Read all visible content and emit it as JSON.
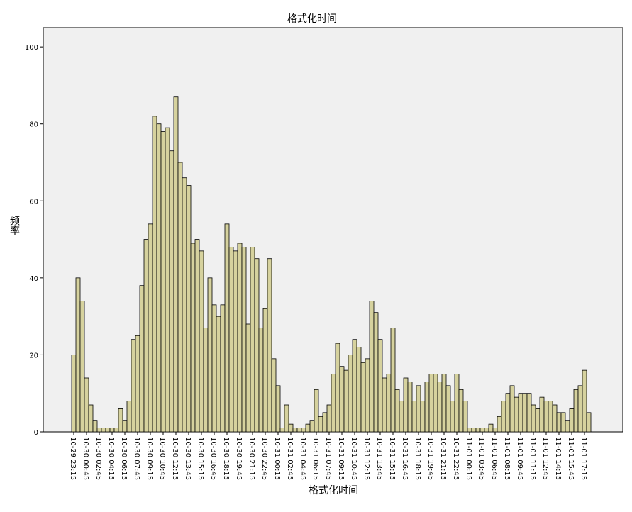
{
  "chart_data": {
    "type": "bar",
    "title": "格式化时间",
    "x_label": "格式化时间",
    "y_label": "频率",
    "categories": [
      "10-29 23:15",
      null,
      null,
      "10-30 00:45",
      null,
      null,
      "10-30 02:45",
      null,
      null,
      "10-30 04:15",
      null,
      null,
      "10-30 06:15",
      null,
      null,
      "10-30 07:45",
      null,
      null,
      "10-30 09:15",
      null,
      null,
      "10-30 10:45",
      null,
      null,
      "10-30 12:15",
      null,
      null,
      "10-30 13:45",
      null,
      null,
      "10-30 15:15",
      null,
      null,
      "10-30 16:45",
      null,
      null,
      "10-30 18:15",
      null,
      null,
      "10-30 19:45",
      null,
      null,
      "10-30 21:15",
      null,
      null,
      "10-30 22:45",
      null,
      null,
      "10-31 00:15",
      null,
      null,
      "10-31 02:45",
      null,
      null,
      "10-31 04:45",
      null,
      null,
      "10-31 06:15",
      null,
      null,
      "10-31 07:45",
      null,
      null,
      "10-31 09:15",
      null,
      null,
      "10-31 10:45",
      null,
      null,
      "10-31 12:15",
      null,
      null,
      "10-31 13:45",
      null,
      null,
      "10-31 15:15",
      null,
      null,
      "10-31 16:45",
      null,
      null,
      "10-31 18:15",
      null,
      null,
      "10-31 19:45",
      null,
      null,
      "10-31 21:15",
      null,
      null,
      "10-31 22:45",
      null,
      null,
      "11-01 00:15",
      null,
      null,
      "11-01 03:45",
      null,
      null,
      "11-01 06:45",
      null,
      null,
      "11-01 08:15",
      null,
      null,
      "11-01 09:45",
      null,
      null,
      "11-01 11:15",
      null,
      null,
      "11-01 12:45",
      null,
      null,
      "11-01 14:15",
      null,
      null,
      "11-01 15:45",
      null,
      null,
      "11-01 17:15",
      null
    ],
    "values": [
      20,
      40,
      34,
      14,
      7,
      3,
      1,
      1,
      1,
      1,
      1,
      6,
      3,
      8,
      24,
      25,
      38,
      50,
      54,
      82,
      80,
      78,
      79,
      73,
      87,
      70,
      66,
      64,
      49,
      50,
      47,
      27,
      40,
      33,
      30,
      33,
      54,
      48,
      47,
      49,
      48,
      28,
      48,
      45,
      27,
      32,
      45,
      19,
      12,
      1,
      7,
      2,
      1,
      1,
      1,
      2,
      3,
      11,
      4,
      5,
      7,
      15,
      23,
      17,
      16,
      20,
      24,
      22,
      18,
      19,
      34,
      31,
      24,
      14,
      15,
      27,
      11,
      8,
      14,
      13,
      8,
      12,
      8,
      13,
      15,
      15,
      13,
      15,
      12,
      8,
      15,
      11,
      8,
      1,
      1,
      1,
      1,
      1,
      2,
      1,
      4,
      8,
      10,
      12,
      9,
      10,
      10,
      10,
      7,
      6,
      9,
      8,
      8,
      7,
      5,
      5,
      3,
      6,
      11,
      12,
      16,
      5
    ],
    "color": "#d6d29e",
    "ylim": [
      0,
      105
    ],
    "yticks": [
      0,
      20,
      40,
      60,
      80,
      100
    ]
  }
}
